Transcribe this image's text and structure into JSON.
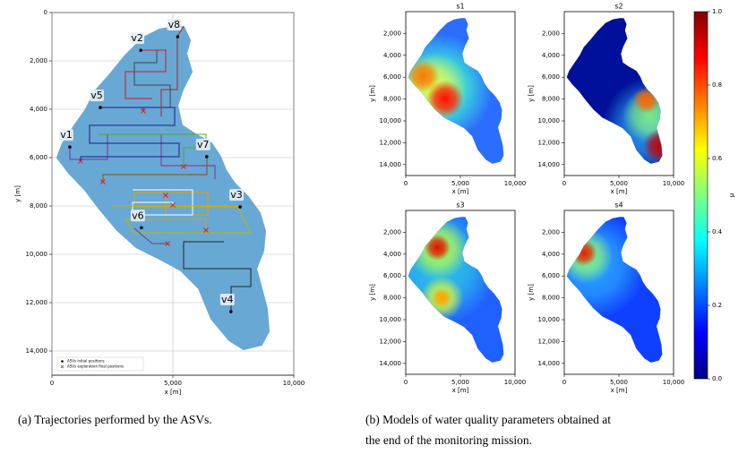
{
  "chart_data": [
    {
      "type": "scatter",
      "x_label": "x [m]",
      "y_label": "y [m]",
      "xlim": [
        0,
        10000
      ],
      "ylim": [
        0,
        15000
      ],
      "y_inverted": true,
      "grid": true,
      "xticks": [
        0,
        {
          "value": 5000,
          "label": "5,000"
        },
        {
          "value": 10000,
          "label": "10,000"
        }
      ],
      "yticks": [
        0,
        {
          "value": 2000,
          "label": "2,000"
        },
        {
          "value": 4000,
          "label": "4,000"
        },
        {
          "value": 6000,
          "label": "6,000"
        },
        {
          "value": 8000,
          "label": "8,000"
        },
        {
          "value": 10000,
          "label": "10,000"
        },
        {
          "value": 12000,
          "label": "12,000"
        },
        {
          "value": 14000,
          "label": "14,000"
        }
      ],
      "legend": "lower left",
      "series": [
        {
          "name": "ASVs initial positions",
          "color": "#000000",
          "marker": "dot",
          "labels": [
            "v1",
            "v2",
            "v3",
            "v4",
            "v5",
            "v6",
            "v7",
            "v8"
          ],
          "x": [
            740,
            3670,
            7780,
            7400,
            2000,
            3700,
            6400,
            5200
          ],
          "y": [
            5560,
            1560,
            8040,
            12370,
            3930,
            8900,
            5960,
            1000
          ]
        },
        {
          "name": "ASVs exploration final positions",
          "color": "#e41a1c",
          "marker": "x",
          "x": [
            3780,
            1180,
            2100,
            5440,
            4700,
            5000,
            6370,
            4780
          ],
          "y": [
            4070,
            6150,
            7000,
            6370,
            7560,
            7960,
            9000,
            9560
          ]
        }
      ]
    },
    {
      "type": "heatmap",
      "title": "s1",
      "x_label": "x [m]",
      "y_label": "y [m]",
      "xlim": [
        0,
        10000
      ],
      "ylim": [
        0,
        15000
      ],
      "y_inverted": true,
      "xticks": [
        0,
        {
          "value": 5000,
          "label": "5,000"
        },
        {
          "value": 10000,
          "label": "10,000"
        }
      ],
      "yticks": [
        {
          "value": 2000,
          "label": "2,000"
        },
        {
          "value": 4000,
          "label": "4,000"
        },
        {
          "value": 6000,
          "label": "6,000"
        },
        {
          "value": 8000,
          "label": "8,000"
        },
        {
          "value": 10000,
          "label": "10,000"
        },
        {
          "value": 12000,
          "label": "12,000"
        },
        {
          "value": 14000,
          "label": "14,000"
        }
      ]
    },
    {
      "type": "heatmap",
      "title": "s2",
      "x_label": "x [m]",
      "y_label": "y [m]",
      "xlim": [
        0,
        10000
      ],
      "ylim": [
        0,
        15000
      ],
      "y_inverted": true,
      "xticks": [
        0,
        {
          "value": 5000,
          "label": "5,000"
        },
        {
          "value": 10000,
          "label": "10,000"
        }
      ],
      "yticks": [
        {
          "value": 2000,
          "label": "2,000"
        },
        {
          "value": 4000,
          "label": "4,000"
        },
        {
          "value": 6000,
          "label": "6,000"
        },
        {
          "value": 8000,
          "label": "8,000"
        },
        {
          "value": 10000,
          "label": "10,000"
        },
        {
          "value": 12000,
          "label": "12,000"
        },
        {
          "value": 14000,
          "label": "14,000"
        }
      ]
    },
    {
      "type": "heatmap",
      "title": "s3",
      "x_label": "x [m]",
      "y_label": "y [m]",
      "xlim": [
        0,
        10000
      ],
      "ylim": [
        0,
        15000
      ],
      "y_inverted": true,
      "xticks": [
        0,
        {
          "value": 5000,
          "label": "5,000"
        },
        {
          "value": 10000,
          "label": "10,000"
        }
      ],
      "yticks": [
        {
          "value": 2000,
          "label": "2,000"
        },
        {
          "value": 4000,
          "label": "4,000"
        },
        {
          "value": 6000,
          "label": "6,000"
        },
        {
          "value": 8000,
          "label": "8,000"
        },
        {
          "value": 10000,
          "label": "10,000"
        },
        {
          "value": 12000,
          "label": "12,000"
        },
        {
          "value": 14000,
          "label": "14,000"
        }
      ]
    },
    {
      "type": "heatmap",
      "title": "s4",
      "x_label": "x [m]",
      "y_label": "y [m]",
      "xlim": [
        0,
        10000
      ],
      "ylim": [
        0,
        15000
      ],
      "y_inverted": true,
      "xticks": [
        0,
        {
          "value": 5000,
          "label": "5,000"
        },
        {
          "value": 10000,
          "label": "10,000"
        }
      ],
      "yticks": [
        {
          "value": 2000,
          "label": "2,000"
        },
        {
          "value": 4000,
          "label": "4,000"
        },
        {
          "value": 6000,
          "label": "6,000"
        },
        {
          "value": 8000,
          "label": "8,000"
        },
        {
          "value": 10000,
          "label": "10,000"
        },
        {
          "value": 12000,
          "label": "12,000"
        },
        {
          "value": 14000,
          "label": "14,000"
        }
      ]
    }
  ],
  "colorbar": {
    "label": "μ",
    "colormap": "jet",
    "lim": [
      0,
      1
    ],
    "ticks": [
      {
        "value": 0,
        "label": "0.0"
      },
      {
        "value": 0.2,
        "label": "0.2"
      },
      {
        "value": 0.4,
        "label": "0.4"
      },
      {
        "value": 0.6,
        "label": "0.6"
      },
      {
        "value": 0.8,
        "label": "0.8"
      },
      {
        "value": 1,
        "label": "1.0"
      }
    ]
  },
  "captions": [
    "(a)  Trajectories performed by the ASVs.",
    "(b)  Models of water quality parameters obtained at",
    "the end of the monitoring mission."
  ]
}
